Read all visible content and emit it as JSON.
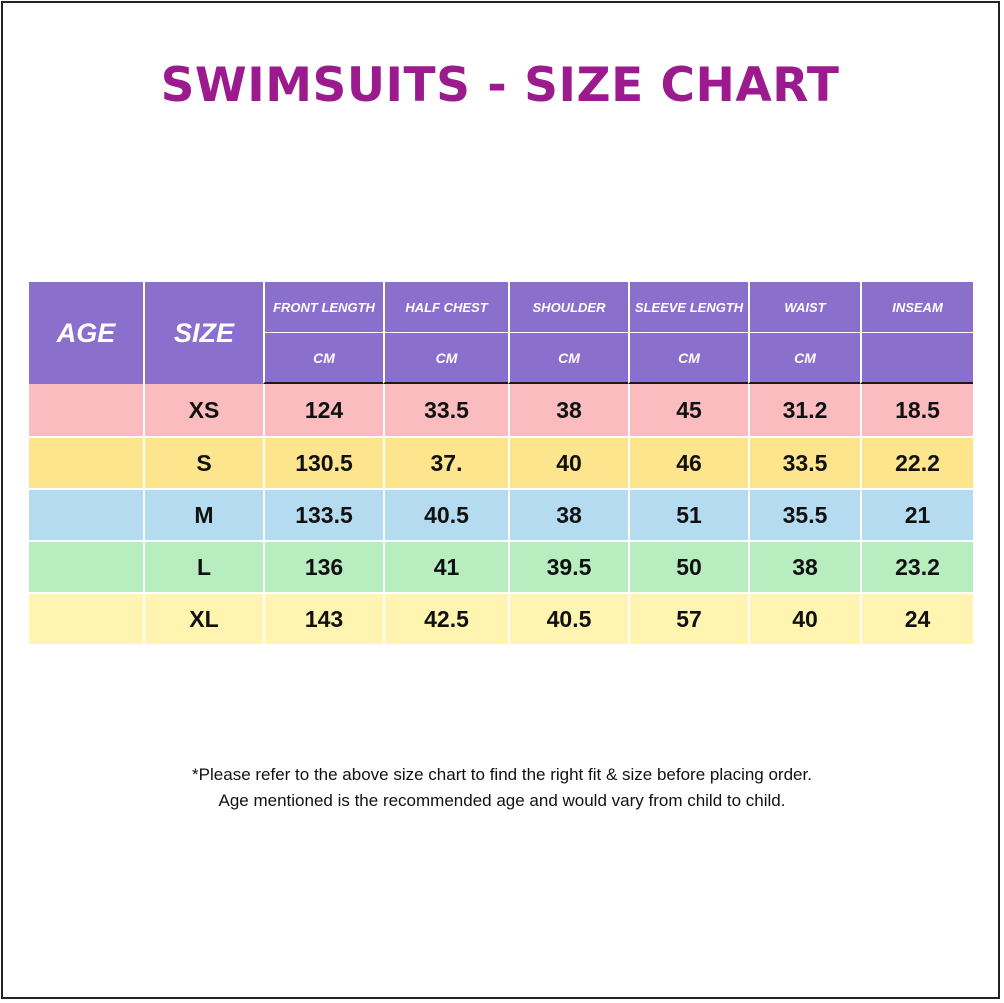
{
  "title": "SWIMSUITS - SIZE CHART",
  "colors": {
    "title": "#9b1a8e",
    "header": "#8a6fcc",
    "row_xs": "#fbbcc0",
    "row_s": "#fce58d",
    "row_m": "#b5dbf1",
    "row_l": "#b8edbf",
    "row_xl": "#fff5b0"
  },
  "chart_data": {
    "type": "table",
    "headers": {
      "age": "AGE",
      "size": "SIZE",
      "front_length": "FRONT LENGTH",
      "half_chest": "HALF CHEST",
      "shoulder": "SHOULDER",
      "sleeve_length": "SLEEVE LENGTH",
      "waist": "WAIST",
      "inseam": "INSEAM"
    },
    "units": [
      "CM",
      "CM",
      "CM",
      "CM",
      "CM",
      ""
    ],
    "rows": [
      {
        "age": "",
        "size": "XS",
        "front_length": "124",
        "half_chest": "33.5",
        "shoulder": "38",
        "sleeve_length": "45",
        "waist": "31.2",
        "inseam": "18.5"
      },
      {
        "age": "",
        "size": "S",
        "front_length": "130.5",
        "half_chest": "37.",
        "shoulder": "40",
        "sleeve_length": "46",
        "waist": "33.5",
        "inseam": "22.2"
      },
      {
        "age": "",
        "size": "M",
        "front_length": "133.5",
        "half_chest": "40.5",
        "shoulder": "38",
        "sleeve_length": "51",
        "waist": "35.5",
        "inseam": "21"
      },
      {
        "age": "",
        "size": "L",
        "front_length": "136",
        "half_chest": "41",
        "shoulder": "39.5",
        "sleeve_length": "50",
        "waist": "38",
        "inseam": "23.2"
      },
      {
        "age": "",
        "size": "XL",
        "front_length": "143",
        "half_chest": "42.5",
        "shoulder": "40.5",
        "sleeve_length": "57",
        "waist": "40",
        "inseam": "24"
      }
    ]
  },
  "note": {
    "line1": "*Please refer to the above size chart to find the right fit & size before placing order.",
    "line2": "Age mentioned is the recommended age and would vary from child to child."
  }
}
